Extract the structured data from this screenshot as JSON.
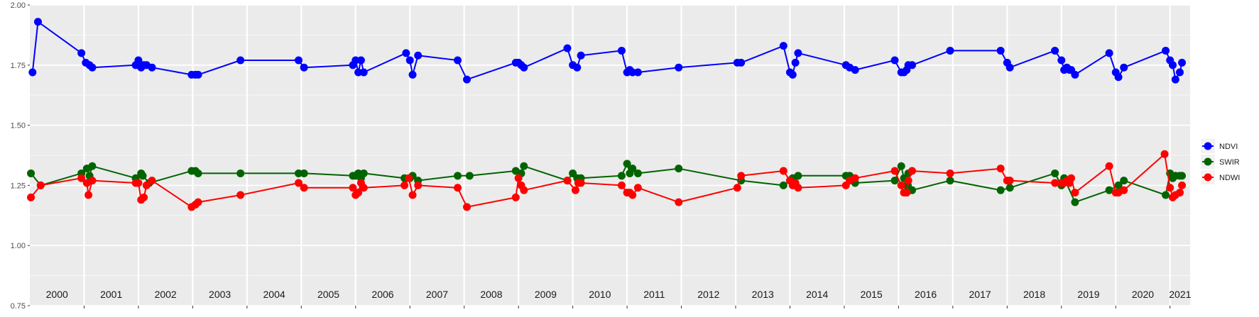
{
  "chart_data": {
    "type": "line",
    "title": "",
    "xlabel": "",
    "ylabel": "",
    "ylim": [
      0.75,
      2.0
    ],
    "y_ticks": [
      "0.75",
      "1.00",
      "1.25",
      "1.50",
      "1.75",
      "2.00"
    ],
    "y_tick_values": [
      0.75,
      1.0,
      1.25,
      1.5,
      1.75,
      2.0
    ],
    "year_labels": [
      "2000",
      "2001",
      "2002",
      "2003",
      "2004",
      "2005",
      "2006",
      "2007",
      "2008",
      "2009",
      "2010",
      "2011",
      "2012",
      "2013",
      "2014",
      "2015",
      "2016",
      "2017",
      "2018",
      "2019",
      "2020",
      "2021"
    ],
    "grid": true,
    "legend_position": "right",
    "x_range": [
      2000.0,
      2021.37
    ],
    "series": [
      {
        "name": "NDVI",
        "color": "#0000ff",
        "points": [
          [
            2000.05,
            1.72
          ],
          [
            2000.15,
            1.93
          ],
          [
            2000.95,
            1.8
          ],
          [
            2001.03,
            1.76
          ],
          [
            2001.1,
            1.75
          ],
          [
            2001.15,
            1.74
          ],
          [
            2001.95,
            1.75
          ],
          [
            2002.0,
            1.77
          ],
          [
            2002.05,
            1.74
          ],
          [
            2002.1,
            1.75
          ],
          [
            2002.15,
            1.75
          ],
          [
            2002.25,
            1.74
          ],
          [
            2002.98,
            1.71
          ],
          [
            2003.05,
            1.71
          ],
          [
            2003.1,
            1.71
          ],
          [
            2003.88,
            1.77
          ],
          [
            2004.95,
            1.77
          ],
          [
            2005.05,
            1.74
          ],
          [
            2005.95,
            1.75
          ],
          [
            2006.0,
            1.77
          ],
          [
            2006.05,
            1.72
          ],
          [
            2006.1,
            1.77
          ],
          [
            2006.15,
            1.72
          ],
          [
            2006.93,
            1.8
          ],
          [
            2007.0,
            1.77
          ],
          [
            2007.05,
            1.71
          ],
          [
            2007.15,
            1.79
          ],
          [
            2007.88,
            1.77
          ],
          [
            2008.05,
            1.69
          ],
          [
            2008.95,
            1.76
          ],
          [
            2009.0,
            1.76
          ],
          [
            2009.05,
            1.75
          ],
          [
            2009.1,
            1.74
          ],
          [
            2009.9,
            1.82
          ],
          [
            2010.0,
            1.75
          ],
          [
            2010.08,
            1.74
          ],
          [
            2010.15,
            1.79
          ],
          [
            2010.9,
            1.81
          ],
          [
            2011.0,
            1.72
          ],
          [
            2011.05,
            1.73
          ],
          [
            2011.1,
            1.72
          ],
          [
            2011.2,
            1.72
          ],
          [
            2011.95,
            1.74
          ],
          [
            2013.03,
            1.76
          ],
          [
            2013.1,
            1.76
          ],
          [
            2013.88,
            1.83
          ],
          [
            2014.0,
            1.72
          ],
          [
            2014.05,
            1.71
          ],
          [
            2014.1,
            1.76
          ],
          [
            2014.15,
            1.8
          ],
          [
            2015.03,
            1.75
          ],
          [
            2015.1,
            1.74
          ],
          [
            2015.2,
            1.73
          ],
          [
            2015.93,
            1.77
          ],
          [
            2016.05,
            1.72
          ],
          [
            2016.1,
            1.72
          ],
          [
            2016.15,
            1.73
          ],
          [
            2016.18,
            1.75
          ],
          [
            2016.25,
            1.75
          ],
          [
            2016.95,
            1.81
          ],
          [
            2017.88,
            1.81
          ],
          [
            2018.0,
            1.76
          ],
          [
            2018.05,
            1.74
          ],
          [
            2018.88,
            1.81
          ],
          [
            2019.0,
            1.77
          ],
          [
            2019.05,
            1.73
          ],
          [
            2019.1,
            1.74
          ],
          [
            2019.15,
            1.73
          ],
          [
            2019.18,
            1.73
          ],
          [
            2019.25,
            1.71
          ],
          [
            2019.88,
            1.8
          ],
          [
            2020.0,
            1.72
          ],
          [
            2020.05,
            1.7
          ],
          [
            2020.15,
            1.74
          ],
          [
            2020.92,
            1.81
          ],
          [
            2021.0,
            1.77
          ],
          [
            2021.05,
            1.75
          ],
          [
            2021.1,
            1.69
          ],
          [
            2021.18,
            1.72
          ],
          [
            2021.22,
            1.76
          ]
        ]
      },
      {
        "name": "SWIR",
        "color": "#006400",
        "points": [
          [
            2000.02,
            1.3
          ],
          [
            2000.2,
            1.25
          ],
          [
            2000.95,
            1.3
          ],
          [
            2001.05,
            1.32
          ],
          [
            2001.1,
            1.29
          ],
          [
            2001.15,
            1.33
          ],
          [
            2001.95,
            1.28
          ],
          [
            2002.05,
            1.3
          ],
          [
            2002.08,
            1.29
          ],
          [
            2002.2,
            1.26
          ],
          [
            2002.98,
            1.31
          ],
          [
            2003.05,
            1.31
          ],
          [
            2003.1,
            1.3
          ],
          [
            2003.88,
            1.3
          ],
          [
            2004.95,
            1.3
          ],
          [
            2005.05,
            1.3
          ],
          [
            2005.95,
            1.29
          ],
          [
            2006.0,
            1.29
          ],
          [
            2006.05,
            1.3
          ],
          [
            2006.1,
            1.28
          ],
          [
            2006.15,
            1.3
          ],
          [
            2006.9,
            1.28
          ],
          [
            2007.0,
            1.28
          ],
          [
            2007.05,
            1.29
          ],
          [
            2007.15,
            1.27
          ],
          [
            2007.88,
            1.29
          ],
          [
            2008.1,
            1.29
          ],
          [
            2008.95,
            1.31
          ],
          [
            2009.05,
            1.3
          ],
          [
            2009.1,
            1.33
          ],
          [
            2009.9,
            1.27
          ],
          [
            2010.0,
            1.3
          ],
          [
            2010.08,
            1.28
          ],
          [
            2010.15,
            1.28
          ],
          [
            2010.9,
            1.29
          ],
          [
            2011.0,
            1.34
          ],
          [
            2011.05,
            1.3
          ],
          [
            2011.1,
            1.32
          ],
          [
            2011.2,
            1.3
          ],
          [
            2011.95,
            1.32
          ],
          [
            2013.1,
            1.27
          ],
          [
            2013.88,
            1.25
          ],
          [
            2014.0,
            1.27
          ],
          [
            2014.05,
            1.28
          ],
          [
            2014.15,
            1.29
          ],
          [
            2015.03,
            1.29
          ],
          [
            2015.1,
            1.29
          ],
          [
            2015.2,
            1.26
          ],
          [
            2015.93,
            1.27
          ],
          [
            2016.05,
            1.33
          ],
          [
            2016.1,
            1.28
          ],
          [
            2016.15,
            1.25
          ],
          [
            2016.18,
            1.3
          ],
          [
            2016.25,
            1.23
          ],
          [
            2016.95,
            1.27
          ],
          [
            2017.88,
            1.23
          ],
          [
            2018.05,
            1.24
          ],
          [
            2018.88,
            1.3
          ],
          [
            2019.0,
            1.25
          ],
          [
            2019.05,
            1.28
          ],
          [
            2019.25,
            1.18
          ],
          [
            2019.88,
            1.23
          ],
          [
            2020.05,
            1.25
          ],
          [
            2020.15,
            1.27
          ],
          [
            2020.92,
            1.21
          ],
          [
            2021.0,
            1.3
          ],
          [
            2021.05,
            1.28
          ],
          [
            2021.1,
            1.29
          ],
          [
            2021.18,
            1.29
          ],
          [
            2021.22,
            1.29
          ]
        ]
      },
      {
        "name": "NDWI",
        "color": "#ff0000",
        "points": [
          [
            2000.02,
            1.2
          ],
          [
            2000.2,
            1.25
          ],
          [
            2000.95,
            1.28
          ],
          [
            2001.05,
            1.26
          ],
          [
            2001.08,
            1.21
          ],
          [
            2001.15,
            1.27
          ],
          [
            2001.95,
            1.26
          ],
          [
            2002.0,
            1.26
          ],
          [
            2002.05,
            1.19
          ],
          [
            2002.1,
            1.2
          ],
          [
            2002.15,
            1.25
          ],
          [
            2002.25,
            1.27
          ],
          [
            2002.98,
            1.16
          ],
          [
            2003.05,
            1.17
          ],
          [
            2003.1,
            1.18
          ],
          [
            2003.88,
            1.21
          ],
          [
            2004.95,
            1.26
          ],
          [
            2005.05,
            1.24
          ],
          [
            2005.95,
            1.24
          ],
          [
            2006.0,
            1.21
          ],
          [
            2006.05,
            1.22
          ],
          [
            2006.1,
            1.26
          ],
          [
            2006.15,
            1.24
          ],
          [
            2006.9,
            1.25
          ],
          [
            2006.98,
            1.28
          ],
          [
            2007.05,
            1.21
          ],
          [
            2007.15,
            1.25
          ],
          [
            2007.88,
            1.24
          ],
          [
            2008.05,
            1.16
          ],
          [
            2008.95,
            1.2
          ],
          [
            2009.0,
            1.28
          ],
          [
            2009.05,
            1.25
          ],
          [
            2009.1,
            1.23
          ],
          [
            2009.9,
            1.27
          ],
          [
            2010.05,
            1.23
          ],
          [
            2010.1,
            1.26
          ],
          [
            2010.15,
            1.26
          ],
          [
            2010.9,
            1.25
          ],
          [
            2011.0,
            1.22
          ],
          [
            2011.05,
            1.22
          ],
          [
            2011.1,
            1.21
          ],
          [
            2011.2,
            1.24
          ],
          [
            2011.95,
            1.18
          ],
          [
            2013.03,
            1.24
          ],
          [
            2013.1,
            1.29
          ],
          [
            2013.88,
            1.31
          ],
          [
            2014.0,
            1.27
          ],
          [
            2014.05,
            1.25
          ],
          [
            2014.1,
            1.26
          ],
          [
            2014.15,
            1.24
          ],
          [
            2015.03,
            1.25
          ],
          [
            2015.1,
            1.27
          ],
          [
            2015.2,
            1.28
          ],
          [
            2015.93,
            1.31
          ],
          [
            2016.05,
            1.25
          ],
          [
            2016.1,
            1.22
          ],
          [
            2016.15,
            1.22
          ],
          [
            2016.18,
            1.27
          ],
          [
            2016.25,
            1.31
          ],
          [
            2016.95,
            1.3
          ],
          [
            2017.88,
            1.32
          ],
          [
            2018.0,
            1.27
          ],
          [
            2018.05,
            1.27
          ],
          [
            2018.88,
            1.26
          ],
          [
            2019.0,
            1.26
          ],
          [
            2019.05,
            1.26
          ],
          [
            2019.1,
            1.27
          ],
          [
            2019.15,
            1.26
          ],
          [
            2019.18,
            1.28
          ],
          [
            2019.25,
            1.22
          ],
          [
            2019.88,
            1.33
          ],
          [
            2020.0,
            1.22
          ],
          [
            2020.05,
            1.22
          ],
          [
            2020.15,
            1.23
          ],
          [
            2020.9,
            1.38
          ],
          [
            2021.0,
            1.24
          ],
          [
            2021.05,
            1.2
          ],
          [
            2021.1,
            1.21
          ],
          [
            2021.18,
            1.22
          ],
          [
            2021.22,
            1.25
          ]
        ]
      }
    ]
  }
}
